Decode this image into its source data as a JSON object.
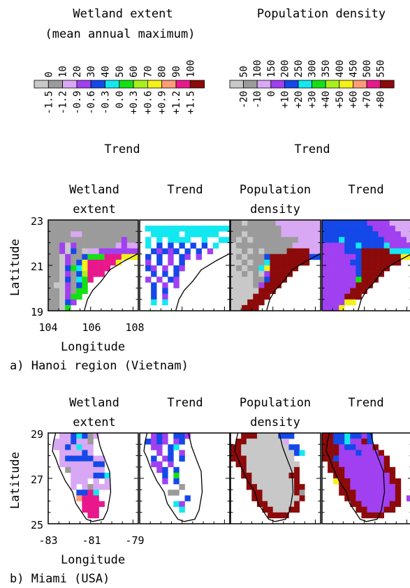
{
  "palette": {
    "c0": "#c8c8c8",
    "c1": "#9b9b9b",
    "c2": "#d9a8f5",
    "c3": "#a040f0",
    "c4": "#1448e8",
    "c5": "#12e8f0",
    "c6": "#14e014",
    "c7": "#a8f018",
    "c8": "#f5f018",
    "c9": "#ff9c78",
    "c10": "#e8188c",
    "c11": "#8c0a0a",
    "land": "#ffffff",
    "coast": "#000000"
  },
  "legends": {
    "wetland": {
      "title1": "Wetland extent",
      "title2": "(mean annual maximum)",
      "top_ticks": [
        "0",
        "10",
        "20",
        "30",
        "40",
        "50",
        "60",
        "70",
        "80",
        "90",
        "100"
      ],
      "bottom_ticks": [
        "-1.5",
        "-1.2",
        "-0.9",
        "-0.6",
        "-0.3",
        "0.0",
        "+0.3",
        "+0.6",
        "+0.9",
        "+1.2",
        "+1.5"
      ],
      "bottom_label": "Trend"
    },
    "population": {
      "title1": "Population density",
      "top_ticks": [
        "50",
        "100",
        "150",
        "200",
        "250",
        "300",
        "350",
        "400",
        "450",
        "500",
        "550"
      ],
      "bottom_ticks": [
        "-20",
        "-10",
        "0",
        "+10",
        "+20",
        "+30",
        "+40",
        "+50",
        "+60",
        "+70",
        "+80"
      ],
      "bottom_label": "Trend"
    }
  },
  "chart_data": [
    {
      "type": "heatmap",
      "region": "hanoi",
      "caption": "a) Hanoi region (Vietnam)",
      "panel_titles": [
        [
          "Wetland",
          "extent"
        ],
        [
          "Trend",
          ""
        ],
        [
          "Population",
          "density"
        ],
        [
          "Trend",
          ""
        ]
      ],
      "ylabel": "Latitude",
      "xlabel": "Longitude",
      "x_ticks": [
        "104",
        "106",
        "108"
      ],
      "y_ticks": [
        "23",
        "21",
        "19"
      ],
      "xlim": [
        104,
        108.25
      ],
      "ylim": [
        19,
        23
      ],
      "coastline": [
        [
          108.2,
          21.5
        ],
        [
          107.6,
          21.2
        ],
        [
          106.9,
          20.8
        ],
        [
          106.5,
          20.3
        ],
        [
          106.1,
          19.9
        ],
        [
          105.85,
          19.5
        ],
        [
          105.7,
          19.0
        ]
      ],
      "grids": [
        [
          "1111111111111111",
          "1111111111111111",
          "1111221111111111",
          "1111111111111311",
          "1130311111112322",
          "1130410223333333",
          "1103114666AAA888",
          "1103148AAAAA8...",
          "1104658AAAA.....",
          "1103147AAA......",
          "1104156A........",
          "1003146.........",
          "1103166.........",
          "110366..........",
          "11043...........",
          "1106............"
        ],
        [
          "................",
          ".5555555555555555",
          "..55555.555555..",
          ".5.5.5555..5..55",
          ".5.4.4.4.4.4.5..",
          "..43434.4.4.3...",
          ".4.4.3.43.3.....",
          ".3.4.3.4........",
          ".43.3.43........",
          "..4.4.4.........",
          ".3.3.43.........",
          "..4.3.3.........",
          "..4.4...........",
          "..4.3...........",
          "..5.5...........",
          "................"
        ],
        [
          "1101111122222222",
          "1111111112222222",
          "1101111112222222",
          "1010111111112222",
          "0111111111122222",
          "0010101111BBBB22",
          "0101114BBBBBBB44",
          "0010115BBBBBBB..",
          "0101158BBBBB....",
          "0010103BBBB.....",
          "0000114BBB......",
          "000013BBB.......",
          "00000BBB........",
          "0000BBB.........",
          "000BBB..........",
          "00BBB..........."
        ],
        [
          "4444444433332222",
          "4444444443333222",
          "4444444444333322",
          "4445444444433332",
          "3333445444453333",
          "3333444BBBBB5555",
          "3333334BBBBBBB88",
          "3333344BBBBBBB..",
          "3333334BBBBB....",
          "3333334BBBB.....",
          "3333336BBB......",
          "333333BBB.......",
          "33333BBB........",
          "3333BBB.........",
          "333388..........",
          "3338............"
        ]
      ]
    },
    {
      "type": "heatmap",
      "region": "miami",
      "caption": "b) Miami (USA)",
      "panel_titles": [
        [
          "Wetland",
          "extent"
        ],
        [
          "Trend",
          ""
        ],
        [
          "Population",
          "density"
        ],
        [
          "Trend",
          ""
        ]
      ],
      "ylabel": "Latitude",
      "xlabel": "Longitude",
      "x_ticks": [
        "-83",
        "-81",
        "-79"
      ],
      "y_ticks": [
        "29",
        "27",
        "25"
      ],
      "xlim": [
        -83,
        -78.75
      ],
      "ylim": [
        25,
        29
      ],
      "coastline": [
        [
          -82.65,
          29.0
        ],
        [
          -82.75,
          28.6
        ],
        [
          -82.8,
          28.2
        ],
        [
          -82.65,
          27.9
        ],
        [
          -82.5,
          27.5
        ],
        [
          -82.2,
          26.9
        ],
        [
          -81.85,
          26.4
        ],
        [
          -81.7,
          25.9
        ],
        [
          -81.2,
          25.2
        ],
        [
          -80.9,
          25.1
        ],
        [
          -80.4,
          25.2
        ],
        [
          -80.2,
          25.6
        ],
        [
          -80.05,
          26.4
        ],
        [
          -80.1,
          27.3
        ],
        [
          -80.35,
          27.9
        ],
        [
          -80.55,
          28.4
        ],
        [
          -80.7,
          29.0
        ]
      ],
      "grids": [
        [
          "..2245412.......",
          ".2224221........",
          ".2242522........",
          "..222242........",
          "..24444422......",
          "..22222244......",
          "...1222222......",
          "....2222445.....",
          "....222.2.2.....",
          "....2.21222.....",
          ".....44A5.......",
          ".....9AAA.......",
          "......AAAA......",
          "......AAA.......",
          ".......AA.......",
          "................"
        ],
        [
          "..343.443.......",
          ".4343.34........",
          "..33.45.........",
          "...3.4.3........",
          "..4.34.4........",
          "..33.3..........",
          "...34.4.........",
          "....4.6.........",
          "....3.4.........",
          ".......1........",
          ".....11.........",
          "........4.......",
          "......53........",
          ".......5........",
          "................",
          "................"
        ],
        [
          "..BBB0000444.....",
          ".BB00000002......",
          "BB00000000044....",
          "BB000000000045...",
          "BBB000000000.....",
          ".BB0000000000....",
          "..B000000000B....",
          "..BB0000000BB....",
          "...B00000000B....",
          "...BB0000000BB...",
          "....BB000000B1...",
          "....BB0000000B...",
          ".....BB00000B....",
          "......BB000BB....",
          ".......BBBB......",
          "................."
        ],
        [
          "BB4454434.......",
          "BB44533B4.......",
          "BBB344333B......",
          "BBB3334333B.....",
          "BB433333333B....",
          ".BB33333333B....",
          ".BBB3333333BB...",
          "..BB33333333B...",
          "..8BB3333333BB..",
          "...BB33333333B..",
          "...BBB3333333B..",
          "....BB3333333B.3",
          ".....BB33333BB..",
          "......BB333BB...",
          ".......BBBB.....",
          "................"
        ]
      ]
    }
  ]
}
